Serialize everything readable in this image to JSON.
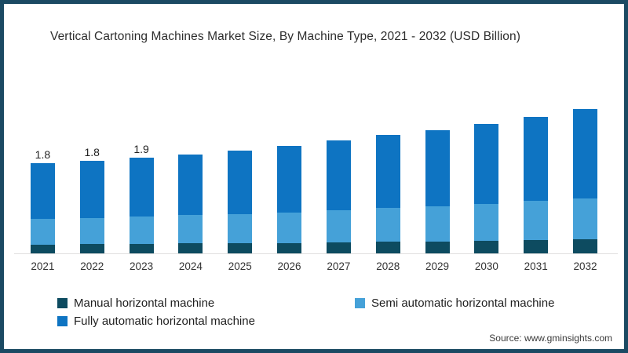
{
  "title": "Vertical Cartoning Machines Market Size, By Machine Type, 2021 - 2032 (USD Billion)",
  "source": "Source: www.gminsights.com",
  "colors": {
    "manual": "#0d4b60",
    "semi": "#45a1d8",
    "fully": "#0e74c2",
    "frame_border": "#1b4a63",
    "axis_line": "#e0dede",
    "text": "#2d2d2d"
  },
  "legend": {
    "items": [
      {
        "label": "Manual horizontal machine",
        "color_key": "manual"
      },
      {
        "label": "Semi automatic horizontal machine",
        "color_key": "semi"
      },
      {
        "label": "Fully automatic horizontal machine",
        "color_key": "fully"
      }
    ]
  },
  "chart_data": {
    "type": "bar",
    "subtype": "stacked-vertical",
    "title": "Vertical Cartoning Machines Market Size, By Machine Type, 2021 - 2032 (USD Billion)",
    "xlabel": "",
    "ylabel": "USD Billion",
    "ylim": [
      0,
      3.0
    ],
    "grid": false,
    "legend_position": "bottom",
    "categories": [
      "2021",
      "2022",
      "2023",
      "2024",
      "2025",
      "2026",
      "2027",
      "2028",
      "2029",
      "2030",
      "2031",
      "2032"
    ],
    "series": [
      {
        "name": "Manual horizontal machine",
        "color_key": "manual",
        "values": [
          0.18,
          0.19,
          0.19,
          0.2,
          0.2,
          0.21,
          0.22,
          0.23,
          0.24,
          0.25,
          0.27,
          0.28
        ]
      },
      {
        "name": "Semi automatic horizontal machine",
        "color_key": "semi",
        "values": [
          0.51,
          0.52,
          0.54,
          0.56,
          0.58,
          0.61,
          0.64,
          0.67,
          0.7,
          0.73,
          0.77,
          0.81
        ]
      },
      {
        "name": "Fully automatic horizontal machine",
        "color_key": "fully",
        "values": [
          1.11,
          1.13,
          1.18,
          1.21,
          1.27,
          1.32,
          1.39,
          1.46,
          1.52,
          1.6,
          1.68,
          1.79
        ]
      }
    ],
    "totals_estimated": [
      1.8,
      1.84,
      1.91,
      1.97,
      2.05,
      2.14,
      2.25,
      2.36,
      2.46,
      2.58,
      2.72,
      2.88
    ],
    "data_labels": {
      "2021": "1.8",
      "2022": "1.8",
      "2023": "1.9"
    }
  }
}
